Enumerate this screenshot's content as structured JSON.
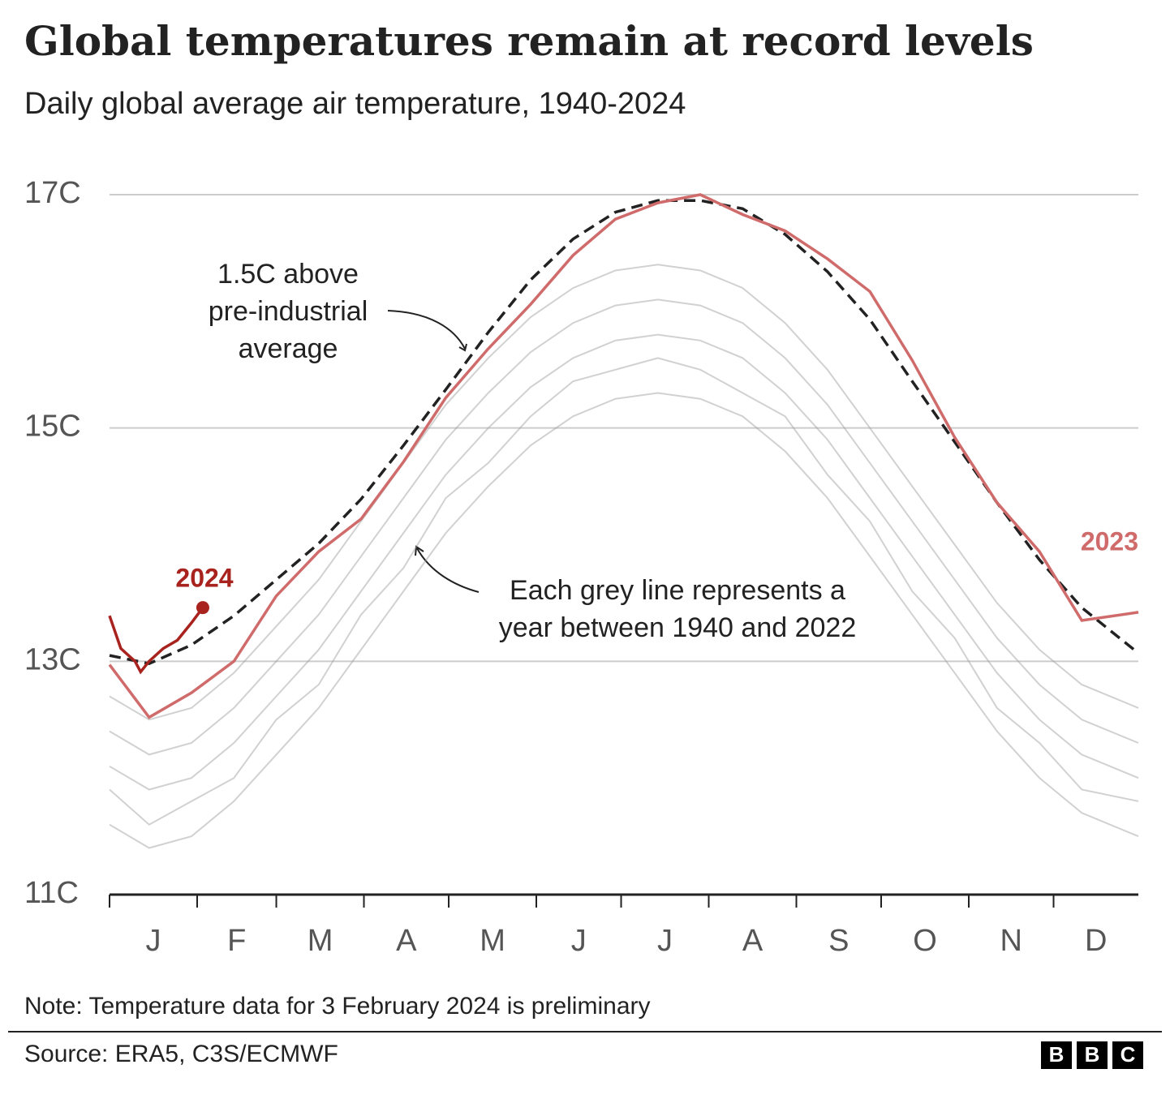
{
  "chart_data": {
    "type": "line",
    "title": "Global temperatures remain at record levels",
    "subtitle": "Daily global average air temperature, 1940-2024",
    "x": [
      1,
      15,
      30,
      45,
      60,
      75,
      90,
      105,
      120,
      135,
      150,
      165,
      180,
      195,
      210,
      225,
      240,
      255,
      270,
      285,
      300,
      315,
      330,
      345,
      365
    ],
    "xlim": [
      1,
      365
    ],
    "xticks": [
      1,
      32,
      60,
      91,
      121,
      152,
      182,
      213,
      244,
      274,
      305,
      335
    ],
    "month_labels": [
      "J",
      "F",
      "M",
      "A",
      "M",
      "J",
      "J",
      "A",
      "S",
      "O",
      "N",
      "D"
    ],
    "ylim": [
      11,
      17
    ],
    "yticks": [
      {
        "value": 11,
        "label": "11C"
      },
      {
        "value": 13,
        "label": "13C"
      },
      {
        "value": 15,
        "label": "15C"
      },
      {
        "value": 17,
        "label": "17C"
      }
    ],
    "grid": true,
    "grey_series": [
      {
        "color": "#9a9a9a",
        "values": [
          11.6,
          11.4,
          11.5,
          11.8,
          12.2,
          12.6,
          13.1,
          13.6,
          14.1,
          14.5,
          14.85,
          15.1,
          15.25,
          15.3,
          15.25,
          15.1,
          14.8,
          14.4,
          13.9,
          13.4,
          12.9,
          12.4,
          12.0,
          11.7,
          11.5
        ]
      },
      {
        "color": "#9a9a9a",
        "values": [
          11.9,
          11.6,
          11.8,
          12.0,
          12.5,
          12.8,
          13.4,
          13.8,
          14.4,
          14.7,
          15.1,
          15.4,
          15.5,
          15.6,
          15.5,
          15.3,
          15.1,
          14.6,
          14.2,
          13.6,
          13.2,
          12.6,
          12.3,
          11.9,
          11.8
        ]
      },
      {
        "color": "#9a9a9a",
        "values": [
          12.1,
          11.9,
          12.0,
          12.3,
          12.7,
          13.1,
          13.6,
          14.1,
          14.6,
          15.0,
          15.35,
          15.6,
          15.75,
          15.8,
          15.75,
          15.6,
          15.3,
          14.9,
          14.4,
          13.9,
          13.4,
          12.9,
          12.5,
          12.2,
          12.0
        ]
      },
      {
        "color": "#9a9a9a",
        "values": [
          12.4,
          12.2,
          12.3,
          12.6,
          13.0,
          13.4,
          13.9,
          14.4,
          14.9,
          15.3,
          15.65,
          15.9,
          16.05,
          16.1,
          16.05,
          15.9,
          15.6,
          15.2,
          14.7,
          14.2,
          13.7,
          13.2,
          12.8,
          12.5,
          12.3
        ]
      },
      {
        "color": "#9a9a9a",
        "values": [
          12.7,
          12.5,
          12.6,
          12.9,
          13.3,
          13.7,
          14.2,
          14.7,
          15.2,
          15.6,
          15.95,
          16.2,
          16.35,
          16.4,
          16.35,
          16.2,
          15.9,
          15.5,
          15.0,
          14.5,
          14.0,
          13.5,
          13.1,
          12.8,
          12.6
        ]
      }
    ],
    "threshold": {
      "color": "#222222",
      "values": [
        13.05,
        12.98,
        13.14,
        13.39,
        13.7,
        14.01,
        14.39,
        14.85,
        15.33,
        15.82,
        16.27,
        16.62,
        16.85,
        16.95,
        16.95,
        16.88,
        16.66,
        16.34,
        15.93,
        15.4,
        14.88,
        14.36,
        13.87,
        13.46,
        13.07
      ]
    },
    "series": [
      {
        "name": "2023",
        "color": "#d06b6b",
        "values": [
          12.97,
          12.52,
          12.73,
          13.0,
          13.56,
          13.94,
          14.22,
          14.71,
          15.26,
          15.68,
          16.06,
          16.48,
          16.79,
          16.93,
          17.0,
          16.83,
          16.69,
          16.45,
          16.17,
          15.58,
          14.92,
          14.36,
          13.94,
          13.35,
          13.42
        ]
      },
      {
        "name": "2024",
        "color": "#a8221e",
        "x": [
          1,
          5,
          10,
          12,
          15,
          20,
          25,
          30,
          34
        ],
        "values": [
          13.39,
          13.11,
          13.0,
          12.91,
          13.0,
          13.11,
          13.18,
          13.33,
          13.46
        ]
      }
    ],
    "annotations": [
      {
        "lines": [
          "1.5C above",
          "pre-industrial",
          "average"
        ]
      },
      {
        "lines": [
          "Each grey line represents a",
          "year between 1940 and 2022"
        ]
      }
    ],
    "note": "Note: Temperature data for 3 February 2024 is preliminary",
    "source": "Source: ERA5, C3S/ECMWF",
    "logo": [
      "B",
      "B",
      "C"
    ]
  }
}
